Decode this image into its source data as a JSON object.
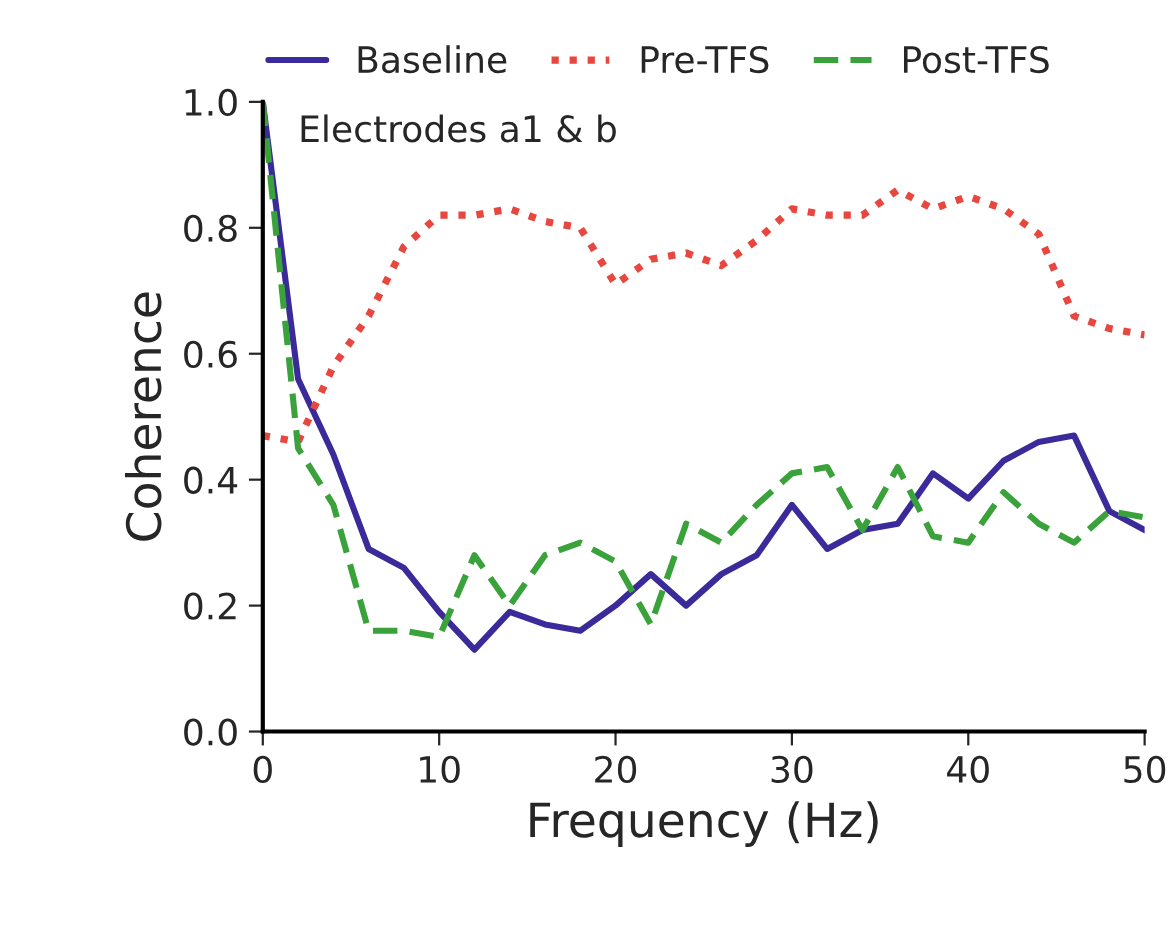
{
  "chart_data": {
    "type": "line",
    "xlabel": "Frequency (Hz)",
    "ylabel": "Coherence",
    "annotations": [
      "Electrodes a1 & b"
    ],
    "x": [
      0,
      2,
      4,
      6,
      8,
      10,
      12,
      14,
      16,
      18,
      20,
      22,
      24,
      26,
      28,
      30,
      32,
      34,
      36,
      38,
      40,
      42,
      44,
      46,
      48,
      50
    ],
    "series": [
      {
        "name": "Baseline",
        "color": "#3a2a9a",
        "line_style": "solid",
        "values": [
          1.0,
          0.56,
          0.44,
          0.29,
          0.26,
          0.19,
          0.13,
          0.19,
          0.17,
          0.16,
          0.2,
          0.25,
          0.2,
          0.25,
          0.28,
          0.36,
          0.29,
          0.32,
          0.33,
          0.41,
          0.37,
          0.43,
          0.46,
          0.47,
          0.35,
          0.32
        ]
      },
      {
        "name": "Pre-TFS",
        "color": "#e8473f",
        "line_style": "dotted",
        "values": [
          0.47,
          0.46,
          0.58,
          0.66,
          0.77,
          0.82,
          0.82,
          0.83,
          0.81,
          0.8,
          0.71,
          0.75,
          0.76,
          0.74,
          0.78,
          0.83,
          0.82,
          0.82,
          0.86,
          0.83,
          0.85,
          0.83,
          0.79,
          0.66,
          0.64,
          0.63
        ]
      },
      {
        "name": "Post-TFS",
        "color": "#3aa23a",
        "line_style": "dashed",
        "values": [
          1.0,
          0.45,
          0.36,
          0.16,
          0.16,
          0.15,
          0.28,
          0.2,
          0.28,
          0.3,
          0.27,
          0.17,
          0.33,
          0.3,
          0.36,
          0.41,
          0.42,
          0.32,
          0.42,
          0.31,
          0.3,
          0.38,
          0.33,
          0.3,
          0.35,
          0.34
        ]
      }
    ],
    "xlim": [
      0,
      50
    ],
    "xticks": [
      0,
      10,
      20,
      30,
      40,
      50
    ],
    "ylim": [
      0,
      1.0
    ],
    "yticks": [
      {
        "value": 0,
        "label": "0.0"
      },
      {
        "value": 0.2,
        "label": "0.2"
      },
      {
        "value": 0.4,
        "label": "0.4"
      },
      {
        "value": 0.6,
        "label": "0.6"
      },
      {
        "value": 0.8,
        "label": "0.8"
      },
      {
        "value": 1.0,
        "label": "1.0"
      }
    ],
    "legend": "top",
    "grid": false,
    "marker": "none"
  }
}
